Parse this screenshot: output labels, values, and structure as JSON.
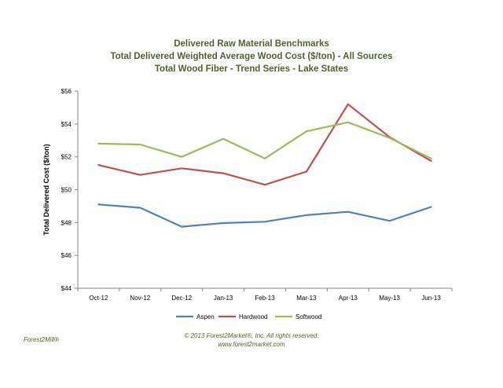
{
  "chart_data": {
    "type": "line",
    "title_lines": [
      "Delivered Raw Material Benchmarks",
      "Total Delivered Weighted Average Wood Cost ($/ton) - All Sources",
      "Total Wood Fiber - Trend Series - Lake States"
    ],
    "ylabel": "Total Delivered Cost ($/ton)",
    "xlabel": "",
    "categories": [
      "Oct-12",
      "Nov-12",
      "Dec-12",
      "Jan-13",
      "Feb-13",
      "Mar-13",
      "Apr-13",
      "May-13",
      "Jun-13"
    ],
    "ylim": [
      44,
      56
    ],
    "yticks": [
      44,
      46,
      48,
      50,
      52,
      54,
      56
    ],
    "ytick_labels": [
      "$44",
      "$46",
      "$48",
      "$50",
      "$52",
      "$54",
      "$56"
    ],
    "grid": false,
    "legend_position": "bottom",
    "series": [
      {
        "name": "Aspen",
        "color": "#4f81bd",
        "values": [
          49.1,
          48.9,
          47.75,
          47.97,
          48.05,
          48.45,
          48.65,
          48.1,
          48.95
        ]
      },
      {
        "name": "Hardwood",
        "color": "#c0504d",
        "values": [
          51.5,
          50.9,
          51.3,
          51.0,
          50.3,
          51.1,
          55.2,
          53.2,
          51.75
        ]
      },
      {
        "name": "Softwood",
        "color": "#9bbb59",
        "values": [
          52.8,
          52.75,
          52.0,
          53.1,
          51.9,
          53.55,
          54.1,
          53.15,
          51.9
        ]
      }
    ]
  },
  "footer": {
    "brand": "Forest2Mill®",
    "copyright": "© 2013 Forest2Market®, Inc. All rights reserved.",
    "website": "www.forest2market.com"
  }
}
